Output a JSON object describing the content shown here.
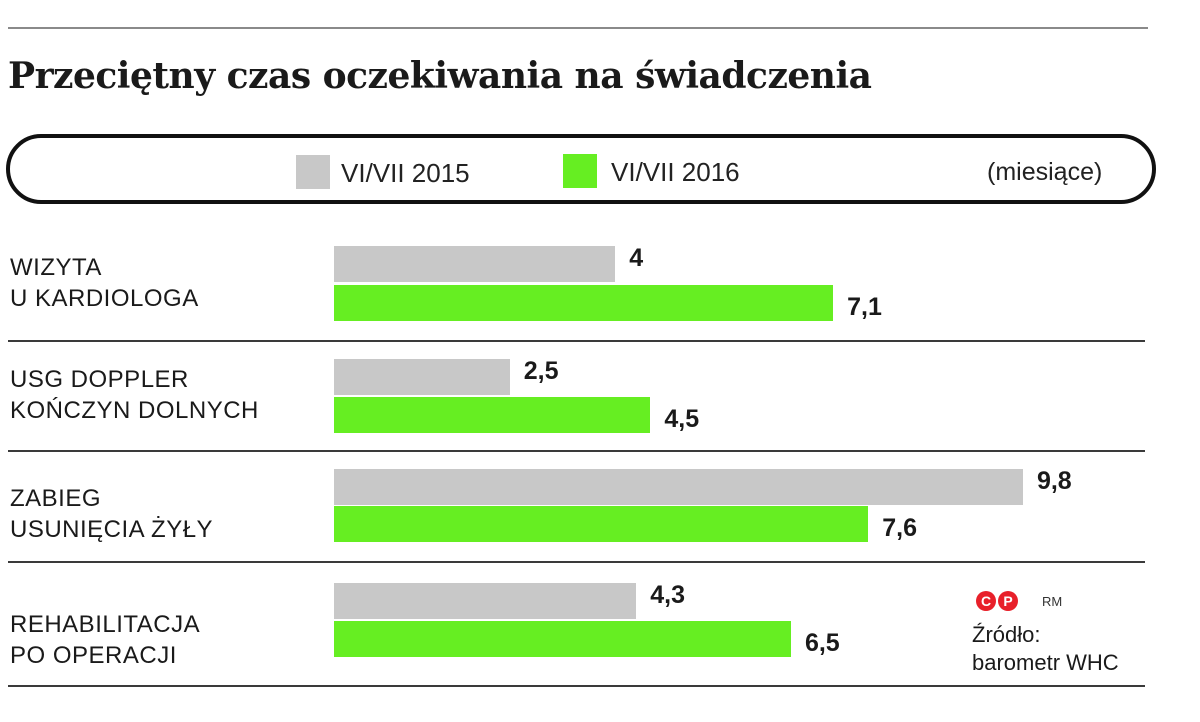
{
  "title": "Przeciętny czas oczekiwania na świadczenia",
  "legend": {
    "items": [
      {
        "label": "VI/VII 2015",
        "color": "#c8c8c8"
      },
      {
        "label": "VI/VII 2016",
        "color": "#66ee22"
      }
    ],
    "units": "(miesiące)"
  },
  "chart_data": {
    "type": "bar",
    "orientation": "horizontal",
    "title": "Przeciętny czas oczekiwania na świadczenia",
    "units": "(miesiące)",
    "categories": [
      "WIZYTA\nU KARDIOLOGA",
      "USG DOPPLER\nKOŃCZYN DOLNYCH",
      "ZABIEG\nUSUNIĘCIA ŻYŁY",
      "REHABILITACJA\nPO OPERACJI"
    ],
    "series": [
      {
        "name": "VI/VII 2015",
        "color": "#c8c8c8",
        "values": [
          4,
          2.5,
          9.8,
          4.3
        ],
        "labels": [
          "4",
          "2,5",
          "9,8",
          "4,3"
        ]
      },
      {
        "name": "VI/VII 2016",
        "color": "#66ee22",
        "values": [
          7.1,
          4.5,
          7.6,
          6.5
        ],
        "labels": [
          "7,1",
          "4,5",
          "7,6",
          "6,5"
        ]
      }
    ],
    "xlim": [
      0,
      10
    ],
    "grid": false,
    "legend_position": "top"
  },
  "credits": {
    "logo_letters": [
      "C",
      "P"
    ],
    "rm": "RM",
    "source": "Źródło:\nbarometr WHC"
  }
}
